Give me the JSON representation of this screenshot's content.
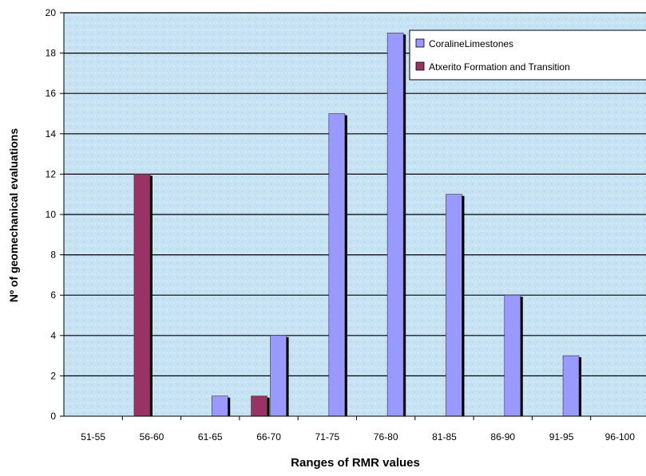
{
  "chart_data": {
    "type": "bar",
    "xlabel": "Ranges of RMR values",
    "ylabel": "Nº of geomechanical evaluations",
    "categories": [
      "51-55",
      "56-60",
      "61-65",
      "66-70",
      "71-75",
      "76-80",
      "81-85",
      "86-90",
      "91-95",
      "96-100"
    ],
    "series": [
      {
        "name": "CoralineLimestones",
        "values": [
          0,
          0,
          1,
          4,
          15,
          19,
          11,
          6,
          3,
          0
        ],
        "color": "#9999ff"
      },
      {
        "name": "Atxerito Formation and Transition",
        "values": [
          0,
          12,
          0,
          1,
          0,
          0,
          0,
          0,
          0,
          0
        ],
        "color": "#993366"
      }
    ],
    "ylim": [
      0,
      20
    ],
    "yticks": [
      0,
      2,
      4,
      6,
      8,
      10,
      12,
      14,
      16,
      18,
      20
    ],
    "grid": true,
    "legend_position": "top-right",
    "plot_background": "#c5e1f2"
  }
}
